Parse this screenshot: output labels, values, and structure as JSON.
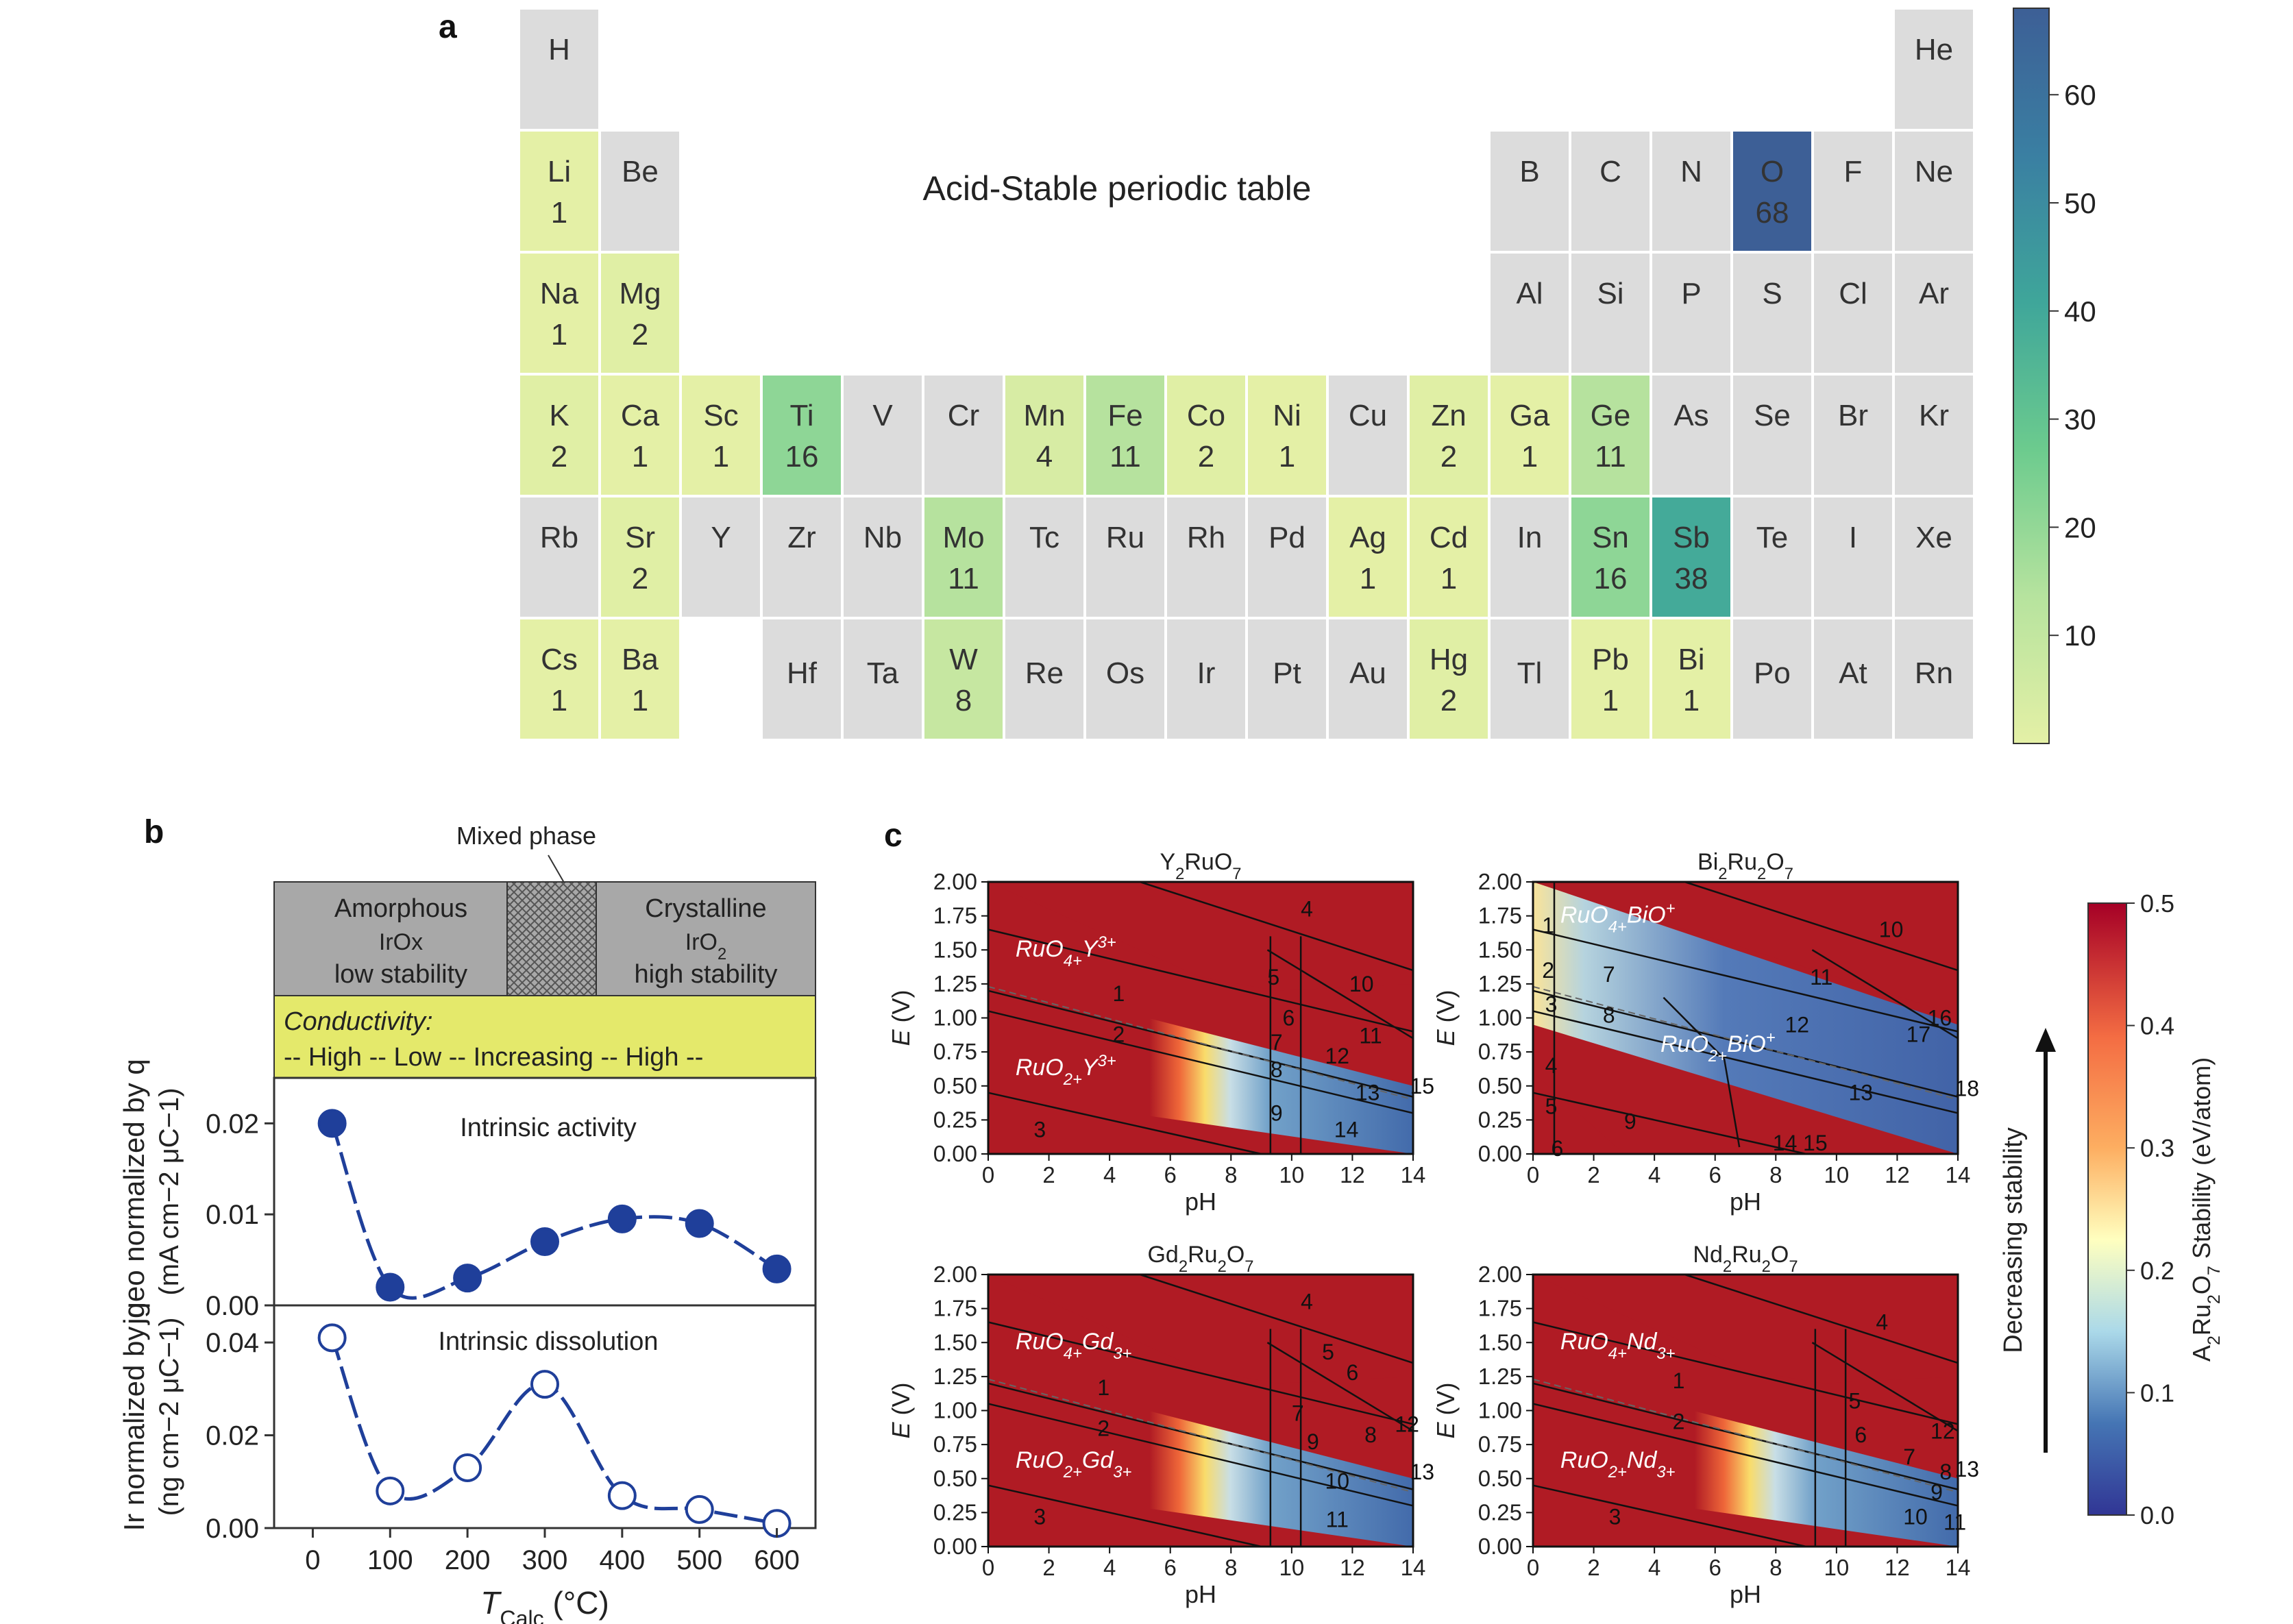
{
  "panel_letters": {
    "a": "a",
    "b": "b",
    "c": "c"
  },
  "chart_data": [
    {
      "type": "heatmap",
      "panel": "a",
      "title": "Acid-Stable periodic table",
      "colorbar": {
        "min": 0,
        "max": 68,
        "ticks": [
          10,
          20,
          30,
          40,
          50,
          60
        ]
      },
      "elements": [
        {
          "sym": "H",
          "period": 1,
          "group": 1
        },
        {
          "sym": "He",
          "period": 1,
          "group": 18
        },
        {
          "sym": "Li",
          "period": 2,
          "group": 1,
          "count": 1
        },
        {
          "sym": "Be",
          "period": 2,
          "group": 2
        },
        {
          "sym": "B",
          "period": 2,
          "group": 13
        },
        {
          "sym": "C",
          "period": 2,
          "group": 14
        },
        {
          "sym": "N",
          "period": 2,
          "group": 15
        },
        {
          "sym": "O",
          "period": 2,
          "group": 16,
          "count": 68
        },
        {
          "sym": "F",
          "period": 2,
          "group": 17
        },
        {
          "sym": "Ne",
          "period": 2,
          "group": 18
        },
        {
          "sym": "Na",
          "period": 3,
          "group": 1,
          "count": 1
        },
        {
          "sym": "Mg",
          "period": 3,
          "group": 2,
          "count": 2
        },
        {
          "sym": "Al",
          "period": 3,
          "group": 13
        },
        {
          "sym": "Si",
          "period": 3,
          "group": 14
        },
        {
          "sym": "P",
          "period": 3,
          "group": 15
        },
        {
          "sym": "S",
          "period": 3,
          "group": 16
        },
        {
          "sym": "Cl",
          "period": 3,
          "group": 17
        },
        {
          "sym": "Ar",
          "period": 3,
          "group": 18
        },
        {
          "sym": "K",
          "period": 4,
          "group": 1,
          "count": 2
        },
        {
          "sym": "Ca",
          "period": 4,
          "group": 2,
          "count": 1
        },
        {
          "sym": "Sc",
          "period": 4,
          "group": 3,
          "count": 1
        },
        {
          "sym": "Ti",
          "period": 4,
          "group": 4,
          "count": 16
        },
        {
          "sym": "V",
          "period": 4,
          "group": 5
        },
        {
          "sym": "Cr",
          "period": 4,
          "group": 6
        },
        {
          "sym": "Mn",
          "period": 4,
          "group": 7,
          "count": 4
        },
        {
          "sym": "Fe",
          "period": 4,
          "group": 8,
          "count": 11
        },
        {
          "sym": "Co",
          "period": 4,
          "group": 9,
          "count": 2
        },
        {
          "sym": "Ni",
          "period": 4,
          "group": 10,
          "count": 1
        },
        {
          "sym": "Cu",
          "period": 4,
          "group": 11
        },
        {
          "sym": "Zn",
          "period": 4,
          "group": 12,
          "count": 2
        },
        {
          "sym": "Ga",
          "period": 4,
          "group": 13,
          "count": 1
        },
        {
          "sym": "Ge",
          "period": 4,
          "group": 14,
          "count": 11
        },
        {
          "sym": "As",
          "period": 4,
          "group": 15
        },
        {
          "sym": "Se",
          "period": 4,
          "group": 16
        },
        {
          "sym": "Br",
          "period": 4,
          "group": 17
        },
        {
          "sym": "Kr",
          "period": 4,
          "group": 18
        },
        {
          "sym": "Rb",
          "period": 5,
          "group": 1
        },
        {
          "sym": "Sr",
          "period": 5,
          "group": 2,
          "count": 2
        },
        {
          "sym": "Y",
          "period": 5,
          "group": 3
        },
        {
          "sym": "Zr",
          "period": 5,
          "group": 4
        },
        {
          "sym": "Nb",
          "period": 5,
          "group": 5
        },
        {
          "sym": "Mo",
          "period": 5,
          "group": 6,
          "count": 11
        },
        {
          "sym": "Tc",
          "period": 5,
          "group": 7
        },
        {
          "sym": "Ru",
          "period": 5,
          "group": 8
        },
        {
          "sym": "Rh",
          "period": 5,
          "group": 9
        },
        {
          "sym": "Pd",
          "period": 5,
          "group": 10
        },
        {
          "sym": "Ag",
          "period": 5,
          "group": 11,
          "count": 1
        },
        {
          "sym": "Cd",
          "period": 5,
          "group": 12,
          "count": 1
        },
        {
          "sym": "In",
          "period": 5,
          "group": 13
        },
        {
          "sym": "Sn",
          "period": 5,
          "group": 14,
          "count": 16
        },
        {
          "sym": "Sb",
          "period": 5,
          "group": 15,
          "count": 38
        },
        {
          "sym": "Te",
          "period": 5,
          "group": 16
        },
        {
          "sym": "I",
          "period": 5,
          "group": 17
        },
        {
          "sym": "Xe",
          "period": 5,
          "group": 18
        },
        {
          "sym": "Cs",
          "period": 6,
          "group": 1,
          "count": 1
        },
        {
          "sym": "Ba",
          "period": 6,
          "group": 2,
          "count": 1
        },
        {
          "sym": "Hf",
          "period": 6,
          "group": 4
        },
        {
          "sym": "Ta",
          "period": 6,
          "group": 5
        },
        {
          "sym": "W",
          "period": 6,
          "group": 6,
          "count": 8
        },
        {
          "sym": "Re",
          "period": 6,
          "group": 7
        },
        {
          "sym": "Os",
          "period": 6,
          "group": 8
        },
        {
          "sym": "Ir",
          "period": 6,
          "group": 9
        },
        {
          "sym": "Pt",
          "period": 6,
          "group": 10
        },
        {
          "sym": "Au",
          "period": 6,
          "group": 11
        },
        {
          "sym": "Hg",
          "period": 6,
          "group": 12,
          "count": 2
        },
        {
          "sym": "Tl",
          "period": 6,
          "group": 13
        },
        {
          "sym": "Pb",
          "period": 6,
          "group": 14,
          "count": 1
        },
        {
          "sym": "Bi",
          "period": 6,
          "group": 15,
          "count": 1
        },
        {
          "sym": "Po",
          "period": 6,
          "group": 16
        },
        {
          "sym": "At",
          "period": 6,
          "group": 17
        },
        {
          "sym": "Rn",
          "period": 6,
          "group": 18
        }
      ]
    },
    {
      "type": "scatter",
      "panel": "b",
      "header": {
        "mixed_phase": "Mixed phase",
        "amorphous": [
          "Amorphous",
          "IrOx",
          "low stability"
        ],
        "crystalline": [
          "Crystalline",
          "IrO2",
          "high stability"
        ],
        "conductivity_title": "Conductivity:",
        "conductivity_text": "-- High -- Low -- Increasing -- High --"
      },
      "xlabel": "TCalc (°C)",
      "x_ticks": [
        0,
        100,
        200,
        300,
        400,
        500,
        600
      ],
      "xlim": [
        -50,
        650
      ],
      "top": {
        "annotation": "Intrinsic activity",
        "ylabel_1": "jgeo normalized by q",
        "ylabel_2": "(mA cm−2 μC−1)",
        "ylim": [
          0,
          0.025
        ],
        "y_ticks": [
          "0.00",
          "0.01",
          "0.02"
        ],
        "x": [
          25,
          100,
          200,
          300,
          400,
          500,
          600
        ],
        "y": [
          0.02,
          0.002,
          0.003,
          0.007,
          0.0095,
          0.009,
          0.004
        ]
      },
      "bottom": {
        "annotation": "Intrinsic dissolution",
        "ylabel_1": "Ir normalized by q",
        "ylabel_2": "(ng cm−2 μC−1)",
        "ylim": [
          0,
          0.048
        ],
        "y_ticks": [
          "0.00",
          "0.02",
          "0.04"
        ],
        "x": [
          25,
          100,
          200,
          300,
          400,
          500,
          600
        ],
        "y": [
          0.041,
          0.008,
          0.013,
          0.031,
          0.007,
          0.004,
          0.001
        ]
      }
    },
    {
      "type": "heatmap",
      "panel": "c",
      "xlabel": "pH",
      "ylabel": "E (V)",
      "xlim": [
        0,
        14
      ],
      "ylim": [
        0,
        2
      ],
      "x_ticks": [
        "0",
        "2",
        "4",
        "6",
        "8",
        "10",
        "12",
        "14"
      ],
      "y_ticks": [
        "0.00",
        "0.25",
        "0.50",
        "0.75",
        "1.00",
        "1.25",
        "1.50",
        "1.75",
        "2.00"
      ],
      "colorbar": {
        "label": "A2Ru2O7 Stability (eV/atom)",
        "ticks": [
          "0.0",
          "0.1",
          "0.2",
          "0.3",
          "0.4",
          "0.5"
        ],
        "min": 0,
        "max": 0.5
      },
      "arrow_label": "Decreasing stability",
      "diagrams": [
        {
          "title": "Y2RuO7",
          "species_top": "RuO4+Y3+",
          "species_bottom": "RuO2+Y3+",
          "regions": [
            "4",
            "5",
            "10",
            "1",
            "2",
            "6",
            "7",
            "8",
            "12",
            "11",
            "13",
            "15",
            "9",
            "14",
            "3"
          ]
        },
        {
          "title": "Bi2Ru2O7",
          "species_top": "RuO4+BiO+",
          "species_bottom": "RuO2+BiO+",
          "regions": [
            "10",
            "1",
            "2",
            "3",
            "4",
            "5",
            "6",
            "7",
            "8",
            "9",
            "11",
            "12",
            "13",
            "14",
            "15",
            "16",
            "17",
            "18"
          ]
        },
        {
          "title": "Gd2Ru2O7",
          "species_top": "RuO4+Gd3+",
          "species_bottom": "RuO2+Gd3+",
          "regions": [
            "4",
            "5",
            "6",
            "1",
            "2",
            "7",
            "8",
            "9",
            "10",
            "11",
            "12",
            "13",
            "3"
          ]
        },
        {
          "title": "Nd2Ru2O7",
          "species_top": "RuO4+Nd3+",
          "species_bottom": "RuO2+Nd3+",
          "regions": [
            "4",
            "1",
            "2",
            "5",
            "6",
            "7",
            "8",
            "9",
            "10",
            "11",
            "12",
            "13",
            "3"
          ]
        }
      ]
    }
  ]
}
